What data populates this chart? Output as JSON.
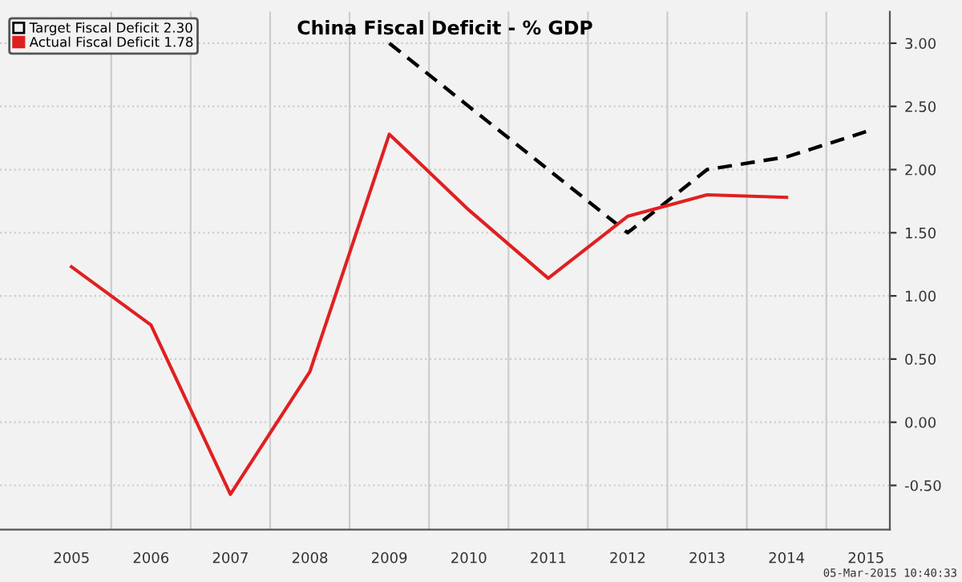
{
  "chart_data": {
    "type": "line",
    "title": "China Fiscal Deficit - % GDP",
    "categories": [
      "2005",
      "2006",
      "2007",
      "2008",
      "2009",
      "2010",
      "2011",
      "2012",
      "2013",
      "2014",
      "2015"
    ],
    "series": [
      {
        "name": "Target Fiscal Deficit 2.30",
        "color": "#000000",
        "line_style": "dashed",
        "values": [
          null,
          null,
          null,
          null,
          3.0,
          2.5,
          2.0,
          1.5,
          2.0,
          2.1,
          2.3
        ]
      },
      {
        "name": "Actual Fiscal Deficit 1.78",
        "color": "#e02020",
        "line_style": "solid",
        "values": [
          1.23,
          0.77,
          -0.57,
          0.4,
          2.28,
          1.68,
          1.14,
          1.63,
          1.8,
          1.78,
          null
        ]
      }
    ],
    "ylim": [
      -0.85,
      3.25
    ],
    "yticks": [
      {
        "value": -0.5,
        "label": "-0.50"
      },
      {
        "value": 0,
        "label": "0.00"
      },
      {
        "value": 0.5,
        "label": "0.50"
      },
      {
        "value": 1,
        "label": "1.00"
      },
      {
        "value": 1.5,
        "label": "1.50"
      },
      {
        "value": 2,
        "label": "2.00"
      },
      {
        "value": 2.5,
        "label": "2.50"
      },
      {
        "value": 3,
        "label": "3.00"
      }
    ],
    "grid": true,
    "legend": "top left",
    "marker": "none",
    "annotations": [
      "05-Mar-2015 10:40:33"
    ]
  }
}
